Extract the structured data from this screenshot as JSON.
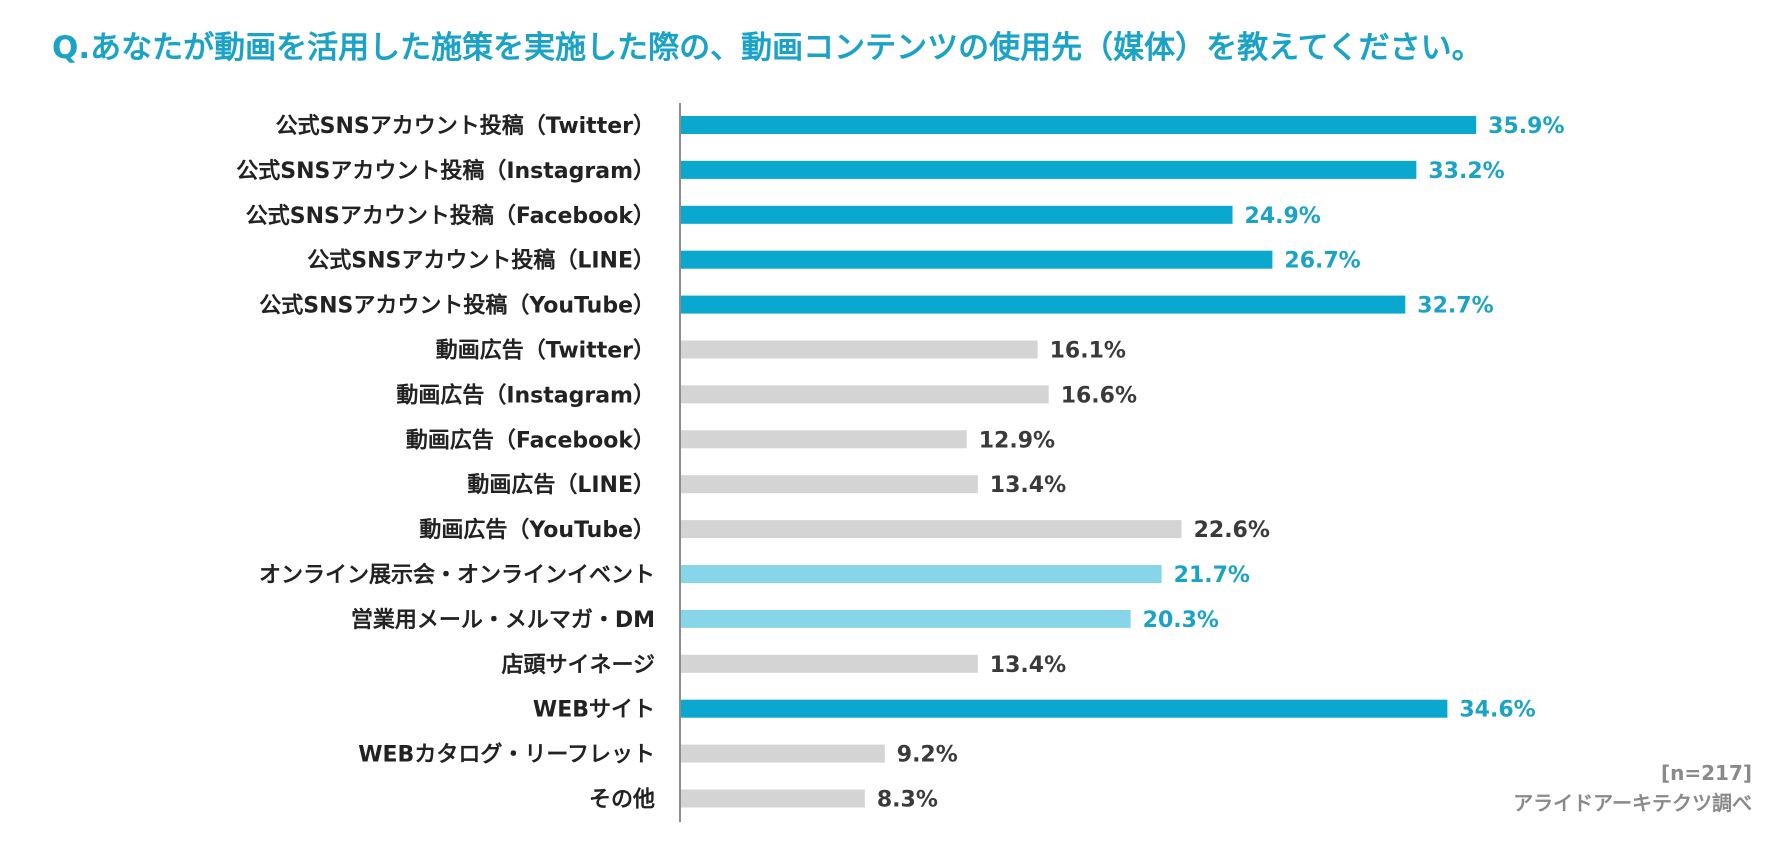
{
  "title": "Q.あなたが動画を活用した施策を実施した際の、動画コンテンツの使用先（媒体）を教えてください。",
  "colors": {
    "title": "#1aa3c7",
    "highlight": "#0aa7cf",
    "light_highlight": "#86d5e8",
    "neutral": "#d4d4d4",
    "highlight_label": "#1aa3c7",
    "neutral_label": "#3a3a3a",
    "axis": "#666666"
  },
  "chart_data": {
    "type": "bar",
    "orientation": "horizontal",
    "title": "Q.あなたが動画を活用した施策を実施した際の、動画コンテンツの使用先（媒体）を教えてください。",
    "categories": [
      "公式SNSアカウント投稿（Twitter）",
      "公式SNSアカウント投稿（Instagram）",
      "公式SNSアカウント投稿（Facebook）",
      "公式SNSアカウント投稿（LINE）",
      "公式SNSアカウント投稿（YouTube）",
      "動画広告（Twitter）",
      "動画広告（Instagram）",
      "動画広告（Facebook）",
      "動画広告（LINE）",
      "動画広告（YouTube）",
      "オンライン展示会・オンラインイベント",
      "営業用メール・メルマガ・DM",
      "店頭サイネージ",
      "WEBサイト",
      "WEBカタログ・リーフレット",
      "その他"
    ],
    "values": [
      35.9,
      33.2,
      24.9,
      26.7,
      32.7,
      16.1,
      16.6,
      12.9,
      13.4,
      22.6,
      21.7,
      20.3,
      13.4,
      34.6,
      9.2,
      8.3
    ],
    "labels": [
      "35.9%",
      "33.2%",
      "24.9%",
      "26.7%",
      "32.7%",
      "16.1%",
      "16.6%",
      "12.9%",
      "13.4%",
      "22.6%",
      "21.7%",
      "20.3%",
      "13.4%",
      "34.6%",
      "9.2%",
      "8.3%"
    ],
    "bar_style": [
      "highlight",
      "highlight",
      "highlight",
      "highlight",
      "highlight",
      "neutral",
      "neutral",
      "neutral",
      "neutral",
      "neutral",
      "light",
      "light",
      "neutral",
      "highlight",
      "neutral",
      "neutral"
    ],
    "unit": "%",
    "xlim": [
      0,
      40
    ],
    "grid": false,
    "legend": "none"
  },
  "footnote": {
    "sample": "[n=217]",
    "source": "アライドアーキテクツ調べ"
  }
}
